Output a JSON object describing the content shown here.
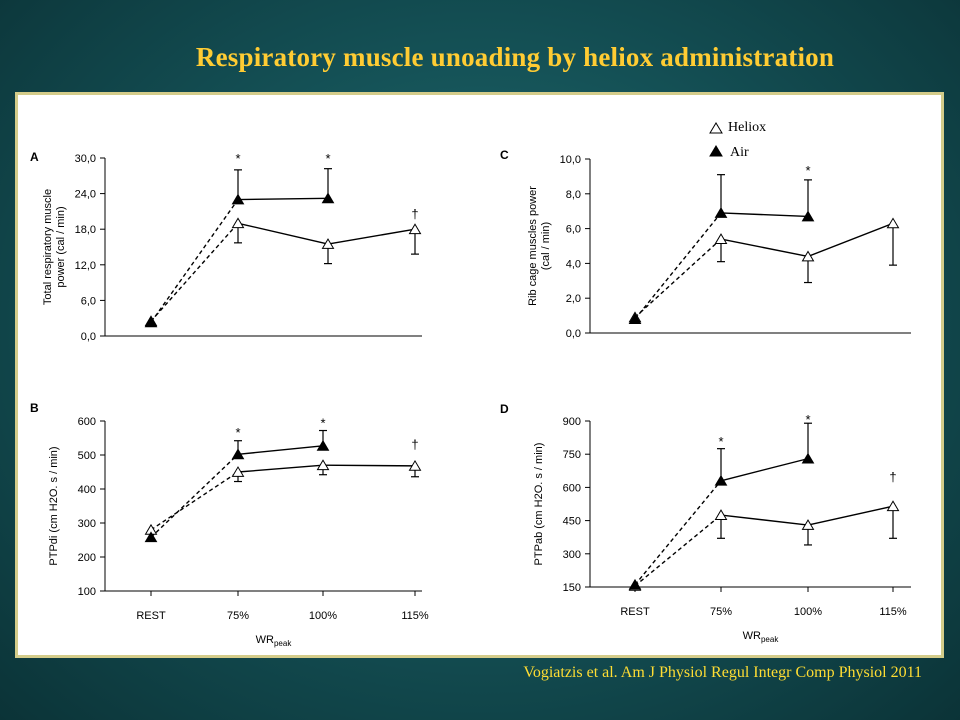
{
  "slide": {
    "title": "Respiratory muscle unoading by heliox administration",
    "citation": "Vogiatzis et al. Am J Physiol Regul Integr Comp Physiol 2011"
  },
  "legend": {
    "heliox_label": "Heliox",
    "air_label": "Air"
  },
  "colors": {
    "background": "#134d52",
    "title": "#ffcc33",
    "citation": "#ffdd33",
    "panel_border": "#d4cc8a",
    "series_line": "#000000"
  },
  "chart_data": [
    {
      "panel": "A",
      "type": "line",
      "ylabel_line1": "Total respiratory muscle",
      "ylabel_line2": "power (cal / min)",
      "xlabel": "",
      "ylim": [
        0,
        30
      ],
      "yticks": [
        "0,0",
        "6,0",
        "12,0",
        "18,0",
        "24,0",
        "30,0"
      ],
      "ytick_values": [
        0,
        6,
        12,
        18,
        24,
        30
      ],
      "categories": [
        "REST",
        "75%",
        "100%",
        "115%"
      ],
      "series": [
        {
          "name": "Heliox",
          "values": [
            2.5,
            19.0,
            15.5,
            18.0
          ],
          "err_up": [
            0,
            0,
            0,
            0
          ],
          "err_down": [
            0,
            3.3,
            3.3,
            4.2
          ]
        },
        {
          "name": "Air",
          "values": [
            2.3,
            23.0,
            23.2,
            null
          ],
          "err_up": [
            0,
            5.0,
            5.0,
            0
          ],
          "err_down": [
            0,
            0,
            0,
            0
          ]
        }
      ],
      "annotations": [
        {
          "text": "*",
          "category": "75%",
          "y": 29.8
        },
        {
          "text": "*",
          "category": "100%",
          "y": 29.8
        },
        {
          "text": "†",
          "category": "115%",
          "y": 20.5
        }
      ],
      "show_xticks": false
    },
    {
      "panel": "C",
      "type": "line",
      "ylabel_line1": "Rib cage muscles power",
      "ylabel_line2": "(cal / min)",
      "xlabel": "",
      "ylim": [
        0,
        10
      ],
      "yticks": [
        "0,0",
        "2,0",
        "4,0",
        "6,0",
        "8,0",
        "10,0"
      ],
      "ytick_values": [
        0,
        2,
        4,
        6,
        8,
        10
      ],
      "categories": [
        "REST",
        "75%",
        "100%",
        "115%"
      ],
      "series": [
        {
          "name": "Heliox",
          "values": [
            0.9,
            5.4,
            4.4,
            6.3
          ],
          "err_up": [
            0,
            0,
            0,
            0
          ],
          "err_down": [
            0,
            1.3,
            1.5,
            2.4
          ]
        },
        {
          "name": "Air",
          "values": [
            0.8,
            6.9,
            6.7,
            null
          ],
          "err_up": [
            0,
            2.2,
            2.1,
            0
          ],
          "err_down": [
            0,
            0,
            0,
            0
          ]
        }
      ],
      "annotations": [
        {
          "text": "*",
          "category": "100%",
          "y": 9.3
        }
      ],
      "show_xticks": false
    },
    {
      "panel": "B",
      "type": "line",
      "ylabel_line1": "PTPdi  (cm H2O. s / min)",
      "ylabel_line2": "",
      "xlabel": "WRpeak",
      "ylim": [
        100,
        600
      ],
      "yticks": [
        "100",
        "200",
        "300",
        "400",
        "500",
        "600"
      ],
      "ytick_values": [
        100,
        200,
        300,
        400,
        500,
        600
      ],
      "categories": [
        "REST",
        "75%",
        "100%",
        "115%"
      ],
      "series": [
        {
          "name": "Heliox",
          "values": [
            280,
            450,
            470,
            468
          ],
          "err_up": [
            0,
            0,
            0,
            0
          ],
          "err_down": [
            0,
            28,
            28,
            32
          ]
        },
        {
          "name": "Air",
          "values": [
            258,
            502,
            527,
            null
          ],
          "err_up": [
            0,
            40,
            45,
            0
          ],
          "err_down": [
            0,
            0,
            0,
            0
          ]
        }
      ],
      "annotations": [
        {
          "text": "*",
          "category": "75%",
          "y": 565
        },
        {
          "text": "*",
          "category": "100%",
          "y": 593
        },
        {
          "text": "†",
          "category": "115%",
          "y": 530
        }
      ],
      "show_xticks": true
    },
    {
      "panel": "D",
      "type": "line",
      "ylabel_line1": "PTPab  (cm H2O. s / min)",
      "ylabel_line2": "",
      "xlabel": "WRpeak",
      "ylim": [
        150,
        900
      ],
      "yticks": [
        "150",
        "300",
        "450",
        "600",
        "750",
        "900"
      ],
      "ytick_values": [
        150,
        300,
        450,
        600,
        750,
        900
      ],
      "categories": [
        "REST",
        "75%",
        "100%",
        "115%"
      ],
      "series": [
        {
          "name": "Heliox",
          "values": [
            155,
            475,
            430,
            515
          ],
          "err_up": [
            0,
            0,
            0,
            0
          ],
          "err_down": [
            0,
            105,
            90,
            145
          ]
        },
        {
          "name": "Air",
          "values": [
            160,
            630,
            730,
            null
          ],
          "err_up": [
            0,
            145,
            160,
            0
          ],
          "err_down": [
            0,
            0,
            0,
            0
          ]
        }
      ],
      "annotations": [
        {
          "text": "*",
          "category": "75%",
          "y": 805
        },
        {
          "text": "*",
          "category": "100%",
          "y": 905
        },
        {
          "text": "†",
          "category": "115%",
          "y": 645
        }
      ],
      "show_xticks": true
    }
  ]
}
